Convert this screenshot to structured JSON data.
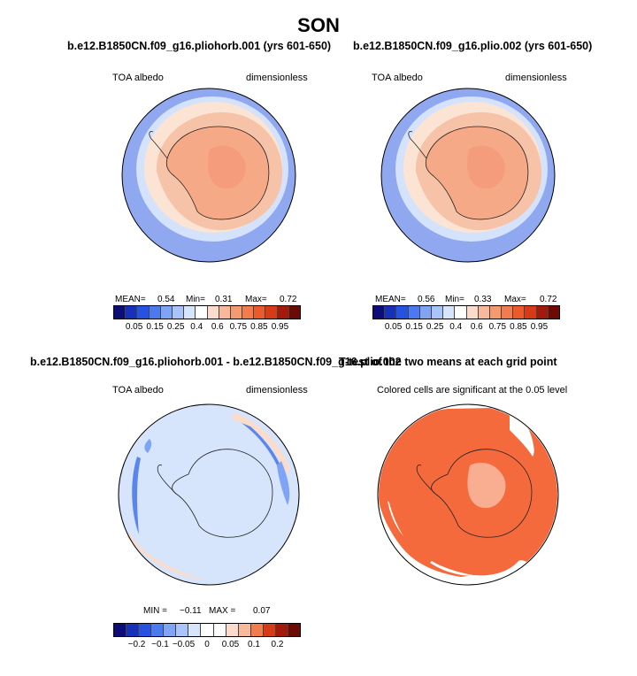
{
  "header": {
    "title": "SON"
  },
  "palettes": {
    "abs": [
      "#0d0d7a",
      "#1730b8",
      "#2552e0",
      "#4a79f0",
      "#7fa3f5",
      "#a9c4fa",
      "#d6e5fb",
      "#ffffff",
      "#fbdccc",
      "#f8b89c",
      "#f5996f",
      "#f27c4e",
      "#ec5a2b",
      "#d63a17",
      "#a31a0c",
      "#6e0a05"
    ],
    "diff": [
      "#0d0d7a",
      "#1730b8",
      "#2552e0",
      "#4a79f0",
      "#7fa3f5",
      "#a9c4fa",
      "#d6e5fb",
      "#ffffff",
      "#ffffff",
      "#fbdccc",
      "#f8b89c",
      "#f27c4e",
      "#d63a17",
      "#a31a0c",
      "#6e0a05"
    ]
  },
  "chart_data": [
    {
      "type": "heatmap",
      "projection": "south-polar-stereographic",
      "title": "b.e12.B1850CN.f09_g16.pliohorb.001 (yrs 601-650)",
      "field": "TOA albedo",
      "units": "dimensionless",
      "stats": {
        "mean_label": "MEAN=",
        "mean": "0.54",
        "min_label": "Min=",
        "min": "0.31",
        "max_label": "Max=",
        "max": "0.72"
      },
      "colorbar_ticks": [
        "0.05",
        "0.15",
        "0.25",
        "0.4",
        "0.6",
        "0.75",
        "0.85",
        "0.95"
      ]
    },
    {
      "type": "heatmap",
      "projection": "south-polar-stereographic",
      "title": "b.e12.B1850CN.f09_g16.plio.002 (yrs 601-650)",
      "field": "TOA albedo",
      "units": "dimensionless",
      "stats": {
        "mean_label": "MEAN=",
        "mean": "0.56",
        "min_label": "Min=",
        "min": "0.33",
        "max_label": "Max=",
        "max": "0.72"
      },
      "colorbar_ticks": [
        "0.05",
        "0.15",
        "0.25",
        "0.4",
        "0.6",
        "0.75",
        "0.85",
        "0.95"
      ]
    },
    {
      "type": "heatmap",
      "projection": "south-polar-stereographic",
      "title": "b.e12.B1850CN.f09_g16.pliohorb.001 - b.e12.B1850CN.f09_g16.plio.002",
      "field": "TOA albedo",
      "units": "dimensionless",
      "stats": {
        "min_label": "MIN =",
        "min": "−0.11",
        "max_label": "MAX =",
        "max": "0.07"
      },
      "colorbar_ticks": [
        "−0.2",
        "−0.1",
        "−0.05",
        "0",
        "0.05",
        "0.1",
        "0.2"
      ]
    },
    {
      "type": "heatmap",
      "projection": "south-polar-stereographic",
      "title": "T-test of the two means at each grid point",
      "note": "Colored cells are significant at the 0.05 level",
      "significant_color": "#f46a3c"
    }
  ]
}
